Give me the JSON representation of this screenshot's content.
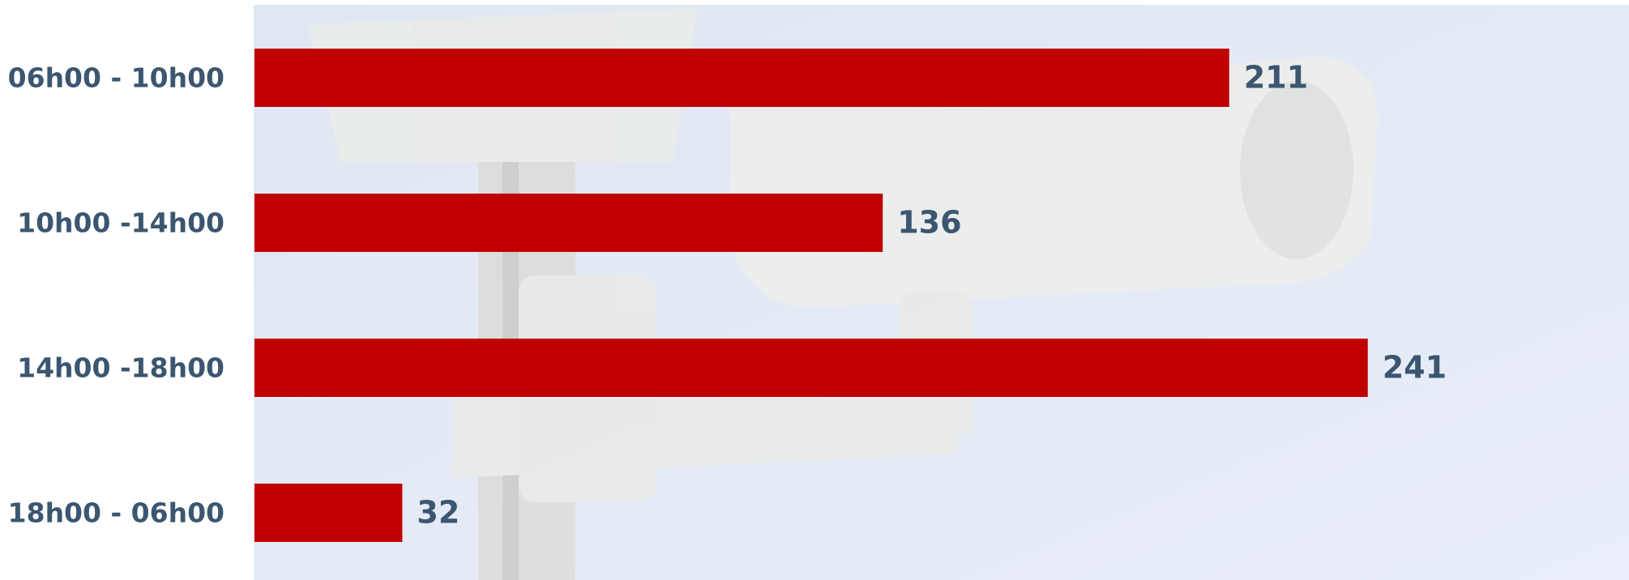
{
  "chart_data": {
    "type": "bar",
    "orientation": "horizontal",
    "categories": [
      "06h00 - 10h00",
      "10h00 -14h00",
      "14h00 -18h00",
      "18h00 - 06h00"
    ],
    "values": [
      211,
      136,
      241,
      32
    ],
    "color": "#c00000"
  }
}
